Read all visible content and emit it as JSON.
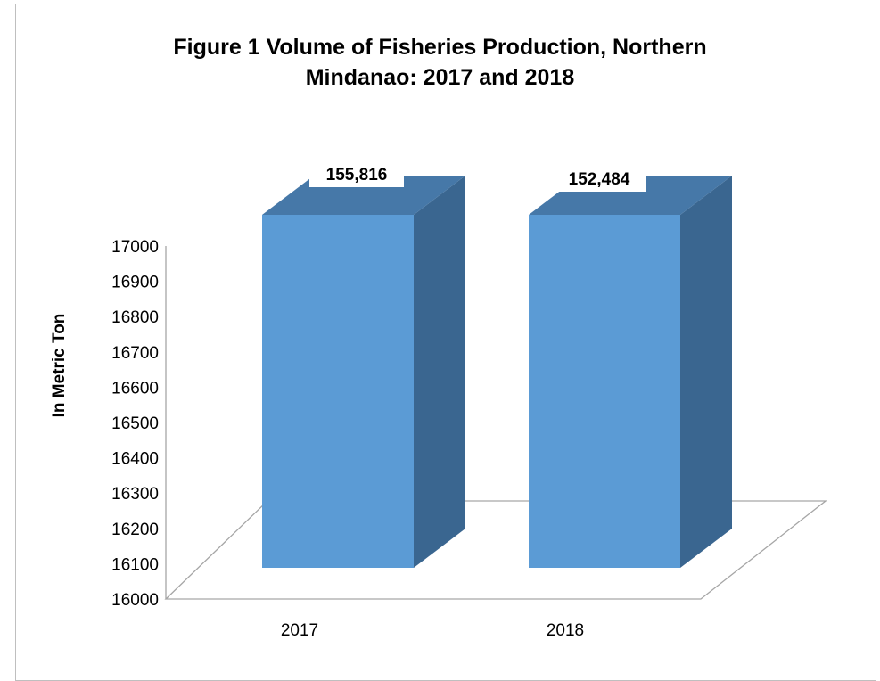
{
  "chart_data": {
    "type": "bar",
    "title_lines": [
      "Figure 1 Volume of Fisheries Production, Northern",
      "Mindanao: 2017 and 2018"
    ],
    "title": "Figure 1 Volume of Fisheries Production, Northern Mindanao: 2017 and 2018",
    "xlabel": "",
    "ylabel": "In Metric Ton",
    "categories": [
      "2017",
      "2018"
    ],
    "values": [
      155816,
      152484
    ],
    "data_labels": [
      "155,816",
      "152,484"
    ],
    "yticks": [
      "17000",
      "16900",
      "16800",
      "16700",
      "16600",
      "16500",
      "16400",
      "16300",
      "16200",
      "16100",
      "16000"
    ],
    "ylim": [
      16000,
      17000
    ],
    "style": "3d-column",
    "grid": false,
    "legend": "none",
    "colors": {
      "bar_front": "#5b9bd5",
      "bar_side": "#3a6690",
      "bar_top": "#4678a8",
      "axis": "#a6a6a6"
    }
  }
}
